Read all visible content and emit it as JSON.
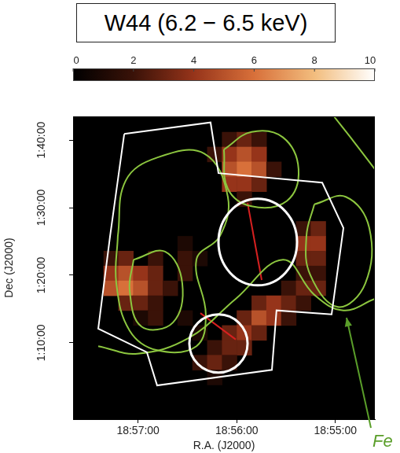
{
  "chart_data": {
    "type": "heatmap",
    "title": "W44 (6.2 − 6.5 keV)",
    "x_label": "R.A. (J2000)",
    "y_label": "Dec (J2000)",
    "xlim": [
      68259.5,
      68076
    ],
    "ylim": [
      58.7,
      103.5
    ],
    "xticks": [
      {
        "value": 68220,
        "label": "18:57:00"
      },
      {
        "value": 68160,
        "label": "18:56:00"
      },
      {
        "value": 68100,
        "label": "18:55:00"
      }
    ],
    "yticks": [
      {
        "value": 70,
        "label": "1:10:00"
      },
      {
        "value": 80,
        "label": "1:20:00"
      },
      {
        "value": 90,
        "label": "1:30:00"
      },
      {
        "value": 100,
        "label": "1:40:00"
      }
    ],
    "grid": false,
    "colorbar": {
      "range": [
        0,
        10
      ],
      "ticks": [
        0,
        2,
        4,
        6,
        8,
        10
      ]
    },
    "cell_size": [
      9,
      2.2
    ],
    "cells": [
      [
        68164.5,
        100.1,
        2
      ],
      [
        68155.5,
        100.1,
        3
      ],
      [
        68146.5,
        100.1,
        2
      ],
      [
        68173.5,
        97.9,
        2
      ],
      [
        68164.5,
        97.9,
        4
      ],
      [
        68155.5,
        97.9,
        5
      ],
      [
        68146.5,
        97.9,
        4
      ],
      [
        68164.5,
        95.7,
        5
      ],
      [
        68155.5,
        95.7,
        6
      ],
      [
        68146.5,
        95.7,
        5
      ],
      [
        68137.5,
        95.7,
        2
      ],
      [
        68164.5,
        93.5,
        4
      ],
      [
        68155.5,
        93.5,
        4
      ],
      [
        68146.5,
        93.5,
        3
      ],
      [
        68155.5,
        91.3,
        2
      ],
      [
        68119.5,
        86.9,
        2
      ],
      [
        68110.5,
        86.9,
        3
      ],
      [
        68191.5,
        84.7,
        1
      ],
      [
        68119.5,
        84.7,
        4
      ],
      [
        68110.5,
        84.7,
        4
      ],
      [
        68236.5,
        82.5,
        2
      ],
      [
        68227.5,
        82.5,
        3
      ],
      [
        68209.5,
        82.5,
        2
      ],
      [
        68191.5,
        82.5,
        2
      ],
      [
        68182.5,
        82.5,
        1
      ],
      [
        68119.5,
        82.5,
        3
      ],
      [
        68110.5,
        82.5,
        3
      ],
      [
        68236.5,
        80.3,
        4
      ],
      [
        68227.5,
        80.3,
        5
      ],
      [
        68218.5,
        80.3,
        4
      ],
      [
        68209.5,
        80.3,
        3
      ],
      [
        68191.5,
        80.3,
        2
      ],
      [
        68119.5,
        80.3,
        2
      ],
      [
        68110.5,
        80.3,
        2
      ],
      [
        68236.5,
        78.1,
        5
      ],
      [
        68227.5,
        78.1,
        6
      ],
      [
        68218.5,
        78.1,
        5
      ],
      [
        68209.5,
        78.1,
        3
      ],
      [
        68200.5,
        78.1,
        2
      ],
      [
        68128.5,
        78.1,
        2
      ],
      [
        68119.5,
        78.1,
        3
      ],
      [
        68110.5,
        78.1,
        3
      ],
      [
        68227.5,
        75.9,
        3
      ],
      [
        68218.5,
        75.9,
        3
      ],
      [
        68209.5,
        75.9,
        2
      ],
      [
        68146.5,
        75.9,
        3
      ],
      [
        68137.5,
        75.9,
        4
      ],
      [
        68128.5,
        75.9,
        3
      ],
      [
        68119.5,
        75.9,
        2
      ],
      [
        68218.5,
        73.7,
        1
      ],
      [
        68209.5,
        73.7,
        2
      ],
      [
        68191.5,
        73.7,
        1
      ],
      [
        68155.5,
        73.7,
        3
      ],
      [
        68146.5,
        73.7,
        5
      ],
      [
        68137.5,
        73.7,
        4
      ],
      [
        68128.5,
        73.7,
        2
      ],
      [
        68182.5,
        71.5,
        1
      ],
      [
        68164.5,
        71.5,
        3
      ],
      [
        68155.5,
        71.5,
        4
      ],
      [
        68146.5,
        71.5,
        3
      ],
      [
        68173.5,
        69.3,
        2
      ],
      [
        68164.5,
        69.3,
        3
      ],
      [
        68155.5,
        69.3,
        3
      ],
      [
        68182.5,
        67.1,
        2
      ],
      [
        68173.5,
        67.1,
        3
      ],
      [
        68164.5,
        67.1,
        2
      ],
      [
        68173.5,
        64.9,
        1
      ]
    ],
    "contours": {
      "color": "#8cc63f",
      "lines": [
        {
          "closed": true,
          "points": [
            [
              68232.3,
              85.8
            ],
            [
              68227.5,
              94.0
            ],
            [
              68208.4,
              97.4
            ],
            [
              68179.7,
              98.0
            ],
            [
              68165.4,
              91.6
            ],
            [
              68170.2,
              85.8
            ],
            [
              68184.5,
              82.3
            ],
            [
              68178.8,
              74.2
            ],
            [
              68184.5,
              69.5
            ],
            [
              68208.4,
              68.9
            ],
            [
              68225.1,
              71.8
            ],
            [
              68233.2,
              78.8
            ]
          ]
        },
        {
          "closed": true,
          "points": [
            [
              68167.8,
              98.6
            ],
            [
              68151.0,
              101.2
            ],
            [
              68131.9,
              100.4
            ],
            [
              68122.4,
              95.7
            ],
            [
              68129.5,
              91.0
            ],
            [
              68151.0,
              90.2
            ],
            [
              68165.4,
              92.8
            ]
          ]
        },
        {
          "closed": true,
          "points": [
            [
              68222.7,
              82.3
            ],
            [
              68203.6,
              83.5
            ],
            [
              68193.1,
              78.8
            ],
            [
              68198.8,
              73.0
            ],
            [
              68217.9,
              72.4
            ],
            [
              68225.1,
              77.7
            ]
          ]
        },
        {
          "closed": true,
          "points": [
            [
              68112.8,
              90.5
            ],
            [
              68093.7,
              91.6
            ],
            [
              68079.4,
              87.0
            ],
            [
              68081.8,
              78.8
            ],
            [
              68098.5,
              75.3
            ],
            [
              68115.2,
              80.0
            ],
            [
              68117.6,
              85.8
            ]
          ]
        },
        {
          "closed": false,
          "points": [
            [
              68244.2,
              69.5
            ],
            [
              68220.3,
              68.4
            ],
            [
              68189.3,
              70.7
            ],
            [
              68160.6,
              76.5
            ],
            [
              68131.9,
              82.3
            ],
            [
              68112.8,
              77.1
            ],
            [
              68095.1,
              74.8
            ],
            [
              68076.0,
              76.5
            ]
          ]
        },
        {
          "closed": false,
          "points": [
            [
              68100.9,
              103.5
            ],
            [
              68088.9,
              99.8
            ],
            [
              68076.0,
              95.7
            ]
          ]
        }
      ]
    },
    "field_of_view": {
      "color": "#ffffff",
      "points": [
        [
          68228.4,
          100.9
        ],
        [
          68175.9,
          102.6
        ],
        [
          68171.1,
          95.1
        ],
        [
          68108.0,
          93.7
        ],
        [
          68095.1,
          87.0
        ],
        [
          68102.3,
          74.2
        ],
        [
          68135.8,
          74.8
        ],
        [
          68138.6,
          66.0
        ],
        [
          68208.4,
          63.7
        ],
        [
          68214.6,
          68.6
        ],
        [
          68244.2,
          72.1
        ],
        [
          68237.0,
          85.8
        ]
      ]
    },
    "regions": {
      "color": "#ffffff",
      "line_color": "#d62020",
      "items": [
        {
          "center": [
            68147.2,
            84.9
          ],
          "radii": [
            23.9,
            6.4
          ],
          "line": [
            [
              68153.4,
              90.7
            ],
            [
              68144.8,
              79.3
            ]
          ]
        },
        {
          "center": [
            68171.1,
            69.9
          ],
          "radii": [
            17.7,
            4.3
          ],
          "line": [
            [
              68182.1,
              74.4
            ],
            [
              68160.6,
              70.5
            ]
          ]
        }
      ]
    },
    "annotation": {
      "text": "Fe",
      "color": "#5a9e2a"
    }
  }
}
